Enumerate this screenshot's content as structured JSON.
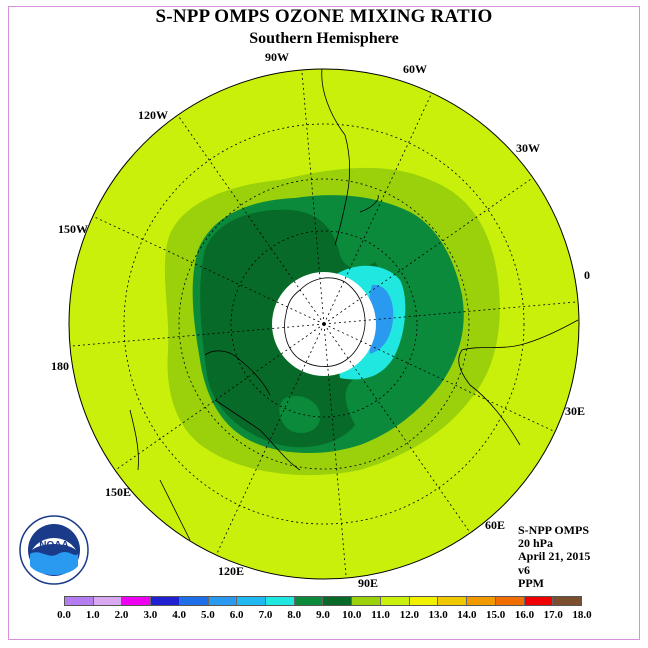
{
  "title": "S-NPP OMPS OZONE MIXING RATIO",
  "subtitle": "Southern Hemisphere",
  "info": {
    "instrument": "S-NPP OMPS",
    "level": "20 hPa",
    "date": "April 21, 2015",
    "version": "v6",
    "units": "PPM"
  },
  "longitude_labels": {
    "lon_90w": "90W",
    "lon_60w": "60W",
    "lon_30w": "30W",
    "lon_0": "0",
    "lon_30e": "30E",
    "lon_60e": "60E",
    "lon_90e": "90E",
    "lon_120e": "120E",
    "lon_150e": "150E",
    "lon_180": "180",
    "lon_150w": "150W",
    "lon_120w": "120W"
  },
  "colorbar": {
    "ticks": [
      "0.0",
      "1.0",
      "2.0",
      "3.0",
      "4.0",
      "5.0",
      "6.0",
      "7.0",
      "8.0",
      "9.0",
      "10.0",
      "11.0",
      "12.0",
      "13.0",
      "14.0",
      "15.0",
      "16.0",
      "17.0",
      "18.0"
    ],
    "colors": [
      "#b57ef0",
      "#d8a8f0",
      "#f000f0",
      "#2020d0",
      "#1e6ee8",
      "#2a9af0",
      "#20b8f0",
      "#20e8e0",
      "#0a8a3a",
      "#086a28",
      "#9ad10a",
      "#c8f00a",
      "#f0f000",
      "#f0c800",
      "#f09a00",
      "#f06e00",
      "#f00000",
      "#7a4e2e"
    ]
  },
  "logo": {
    "text": "NOAA",
    "icon": "noaa-logo"
  }
}
